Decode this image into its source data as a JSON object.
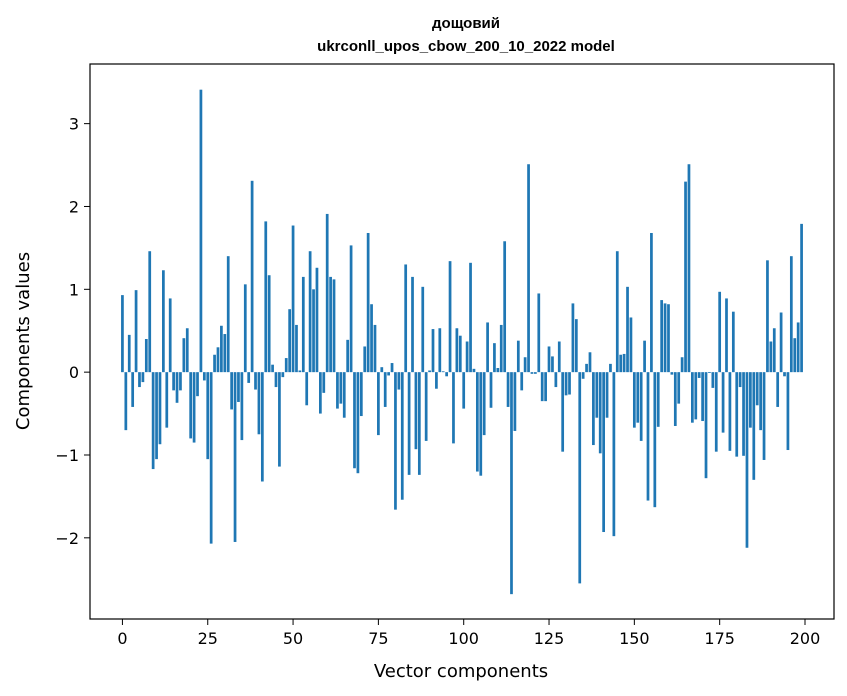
{
  "chart_data": {
    "type": "bar",
    "title": "дощовий",
    "subtitle": "ukrconll_upos_cbow_200_10_2022 model",
    "xlabel": "Vector components",
    "ylabel": "Components values",
    "xlim": [
      -9.5,
      208.5
    ],
    "ylim": [
      -2.98,
      3.72
    ],
    "x_ticks": [
      0,
      25,
      50,
      75,
      100,
      125,
      150,
      175,
      200
    ],
    "x_tick_labels": [
      "0",
      "25",
      "50",
      "75",
      "100",
      "125",
      "150",
      "175",
      "200"
    ],
    "y_ticks": [
      -2,
      -1,
      0,
      1,
      2,
      3
    ],
    "y_tick_labels": [
      "−2",
      "−1",
      "0",
      "1",
      "2",
      "3"
    ],
    "grid": false,
    "bar_color": "#1f77b4",
    "x": "0..199",
    "values": [
      0.93,
      -0.7,
      0.45,
      -0.42,
      0.99,
      -0.18,
      -0.12,
      0.4,
      1.46,
      -1.17,
      -1.05,
      -0.87,
      1.23,
      -0.67,
      0.89,
      -0.22,
      -0.37,
      -0.22,
      0.41,
      0.53,
      -0.8,
      -0.85,
      -0.29,
      3.41,
      -0.1,
      -1.05,
      -2.07,
      0.21,
      0.3,
      0.56,
      0.46,
      1.4,
      -0.45,
      -2.05,
      -0.36,
      -0.82,
      1.06,
      -0.13,
      2.31,
      -0.21,
      -0.75,
      -1.32,
      1.82,
      1.17,
      0.09,
      -0.18,
      -1.14,
      -0.06,
      0.17,
      0.76,
      1.77,
      0.57,
      0.02,
      1.15,
      -0.4,
      1.46,
      1.0,
      1.26,
      -0.5,
      -0.25,
      1.91,
      1.15,
      1.12,
      -0.44,
      -0.38,
      -0.55,
      0.39,
      1.53,
      -1.16,
      -1.22,
      -0.53,
      0.31,
      1.68,
      0.82,
      0.57,
      -0.76,
      0.06,
      -0.42,
      -0.04,
      0.11,
      -1.66,
      -0.21,
      -1.54,
      1.3,
      -1.24,
      1.15,
      -0.93,
      -1.24,
      1.03,
      -0.83,
      0.02,
      0.52,
      -0.2,
      0.53,
      0.01,
      -0.05,
      1.34,
      -0.86,
      0.53,
      0.44,
      -0.44,
      0.37,
      1.32,
      0.04,
      -1.2,
      -1.25,
      -0.76,
      0.6,
      -0.43,
      0.35,
      0.05,
      0.57,
      1.58,
      -0.42,
      -2.68,
      -0.71,
      0.38,
      -0.22,
      0.18,
      2.51,
      -0.02,
      -0.02,
      0.95,
      -0.35,
      -0.35,
      0.31,
      0.19,
      -0.18,
      0.37,
      -0.96,
      -0.28,
      -0.27,
      0.83,
      0.64,
      -2.55,
      -0.08,
      0.1,
      0.24,
      -0.88,
      -0.55,
      -0.98,
      -1.93,
      -0.55,
      0.1,
      -1.98,
      1.46,
      0.21,
      0.22,
      1.03,
      0.66,
      -0.67,
      -0.61,
      -0.83,
      0.38,
      -1.55,
      1.68,
      -1.63,
      -0.66,
      0.87,
      0.83,
      0.82,
      -0.03,
      -0.65,
      -0.38,
      0.18,
      2.3,
      2.51,
      -0.61,
      -0.57,
      -0.07,
      -0.59,
      -1.28,
      -0.01,
      -0.19,
      -0.96,
      0.97,
      -0.73,
      0.89,
      -0.95,
      0.73,
      -1.02,
      -0.18,
      -1.01,
      -2.12,
      -0.67,
      -1.3,
      -0.4,
      -0.7,
      -1.06,
      1.35,
      0.37,
      0.53,
      -0.42,
      0.72,
      -0.05,
      -0.94,
      1.4,
      0.41,
      0.6,
      1.79
    ]
  }
}
